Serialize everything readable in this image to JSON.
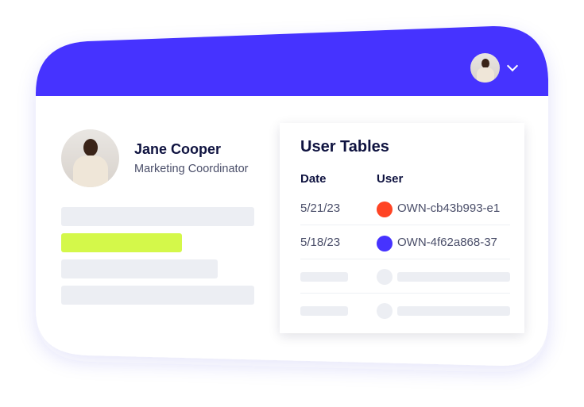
{
  "colors": {
    "header": "#4633FF",
    "accent_bar": "#D4F84A",
    "red": "#FF4424",
    "blue": "#4633FF"
  },
  "header": {
    "avatar": "user-avatar",
    "menu_icon": "chevron-down-icon"
  },
  "profile": {
    "name": "Jane Cooper",
    "role": "Marketing Coordinator"
  },
  "table": {
    "title": "User Tables",
    "columns": [
      "Date",
      "User"
    ],
    "rows": [
      {
        "date": "5/21/23",
        "user": "OWN-cb43b993-e1",
        "color": "#FF4424"
      },
      {
        "date": "5/18/23",
        "user": "OWN-4f62a868-37",
        "color": "#4633FF"
      }
    ]
  }
}
